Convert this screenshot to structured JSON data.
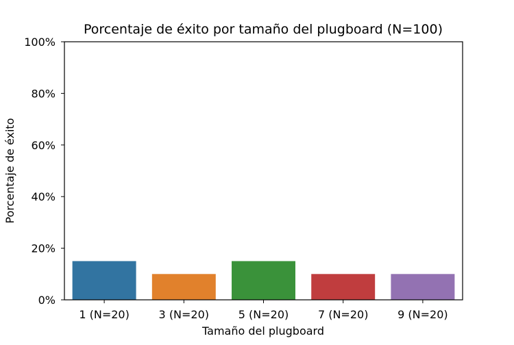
{
  "chart_data": {
    "type": "bar",
    "title": "Porcentaje de éxito por tamaño del plugboard (N=100)",
    "xlabel": "Tamaño del plugboard",
    "ylabel": "Porcentaje de éxito",
    "categories": [
      "1 (N=20)",
      "3 (N=20)",
      "5 (N=20)",
      "7 (N=20)",
      "9 (N=20)"
    ],
    "values": [
      15,
      10,
      15,
      10,
      10
    ],
    "colors": [
      "#3274a1",
      "#e1812c",
      "#3a923a",
      "#c03d3e",
      "#9372b2"
    ],
    "ylim": [
      0,
      100
    ],
    "yticks": [
      0,
      20,
      40,
      60,
      80,
      100
    ],
    "ytick_labels": [
      "0%",
      "20%",
      "40%",
      "60%",
      "80%",
      "100%"
    ],
    "grid": false,
    "legend": "none"
  }
}
